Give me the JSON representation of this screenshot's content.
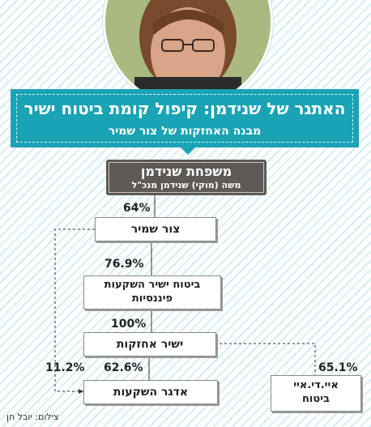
{
  "header": {
    "title": "האתגר של שנידמן: קיפול קומת ביטוח ישיר",
    "subtitle": "מבנה האחזקות של צור שמיר"
  },
  "owner": {
    "name": "משפחת שנידמן",
    "detail": "משה (מוקי) שנידמן מנכ\"ל"
  },
  "entities": {
    "tzur_shamir": "צור שמיר",
    "bituach_yashir_line1": "ביטוח ישיר השקעות",
    "bituach_yashir_line2": "פיננסיות",
    "yashir_holdings": "ישיר אחזקות",
    "adgar": "אדגר השקעות",
    "idi_line1": "איי.די.איי",
    "idi_line2": "ביטוח"
  },
  "stakes": {
    "family_to_tzur": "64%",
    "tzur_to_bituach": "76.9%",
    "bituach_to_yashir": "100%",
    "yashir_to_adgar": "62.6%",
    "tzur_to_adgar": "11.2%",
    "yashir_to_idi": "65.1%"
  },
  "credit": "צילום: יובל חן",
  "colors": {
    "banner": "#1aa3b5",
    "owner_box": "#5e5955",
    "stripes": "#d6eef3"
  }
}
